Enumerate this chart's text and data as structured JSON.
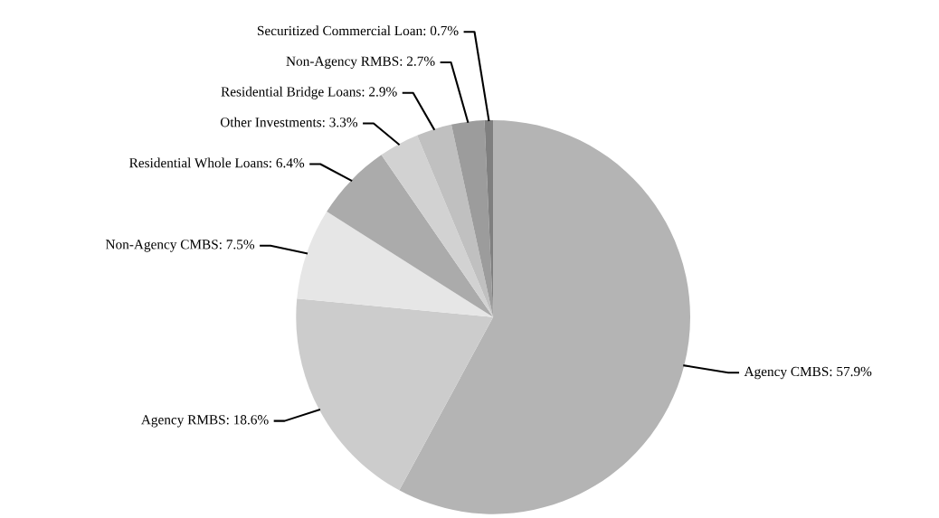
{
  "chart_data": {
    "type": "pie",
    "categories": [
      "Agency CMBS",
      "Agency RMBS",
      "Non-Agency CMBS",
      "Residential Whole Loans",
      "Other Investments",
      "Residential Bridge Loans",
      "Non-Agency RMBS",
      "Securitized Commercial Loan"
    ],
    "values": [
      57.9,
      18.6,
      7.5,
      6.4,
      3.3,
      2.9,
      2.7,
      0.7
    ],
    "value_labels": [
      "57.9%",
      "18.6%",
      "7.5%",
      "6.4%",
      "3.3%",
      "2.9%",
      "2.7%",
      "0.7%"
    ],
    "colors": [
      "#b4b4b4",
      "#cccccc",
      "#e6e6e6",
      "#ababab",
      "#d2d2d2",
      "#c0c0c0",
      "#9c9c9c",
      "#7f7f7f"
    ],
    "legend": false
  }
}
